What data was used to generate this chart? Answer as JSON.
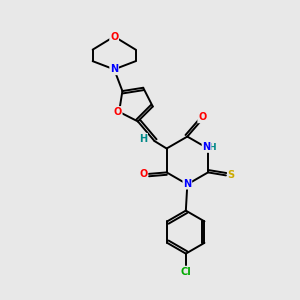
{
  "bg_color": "#e8e8e8",
  "bond_color": "#000000",
  "atom_colors": {
    "O": "#ff0000",
    "N": "#0000ff",
    "S": "#ccaa00",
    "Cl": "#00aa00",
    "C": "#000000",
    "H": "#008888"
  },
  "figsize": [
    3.0,
    3.0
  ],
  "dpi": 100,
  "lw": 1.4
}
